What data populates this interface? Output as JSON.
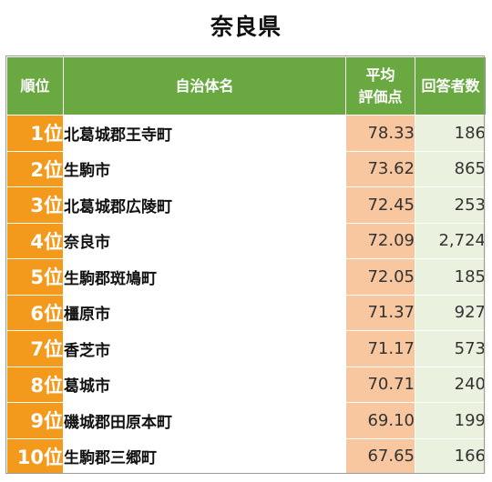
{
  "title": "奈良県",
  "headers": {
    "rank": "順位",
    "name": "自治体名",
    "score_line1": "平均",
    "score_line2": "評価点",
    "count": "回答者数"
  },
  "rows": [
    {
      "rank": "1位",
      "name": "北葛城郡王寺町",
      "score": "78.33",
      "count": "186"
    },
    {
      "rank": "2位",
      "name": "生駒市",
      "score": "73.62",
      "count": "865"
    },
    {
      "rank": "3位",
      "name": "北葛城郡広陵町",
      "score": "72.45",
      "count": "253"
    },
    {
      "rank": "4位",
      "name": "奈良市",
      "score": "72.09",
      "count": "2,724"
    },
    {
      "rank": "5位",
      "name": "生駒郡斑鳩町",
      "score": "72.05",
      "count": "185"
    },
    {
      "rank": "6位",
      "name": "橿原市",
      "score": "71.37",
      "count": "927"
    },
    {
      "rank": "7位",
      "name": "香芝市",
      "score": "71.17",
      "count": "573"
    },
    {
      "rank": "8位",
      "name": "葛城市",
      "score": "70.71",
      "count": "240"
    },
    {
      "rank": "9位",
      "name": "磯城郡田原本町",
      "score": "69.10",
      "count": "199"
    },
    {
      "rank": "10位",
      "name": "生駒郡三郷町",
      "score": "67.65",
      "count": "166"
    }
  ],
  "colors": {
    "header_green": "#6aa842",
    "rank_orange": "#f39a1d",
    "score_peach": "#f8c7a0",
    "count_lightgreen": "#eaf2df"
  }
}
